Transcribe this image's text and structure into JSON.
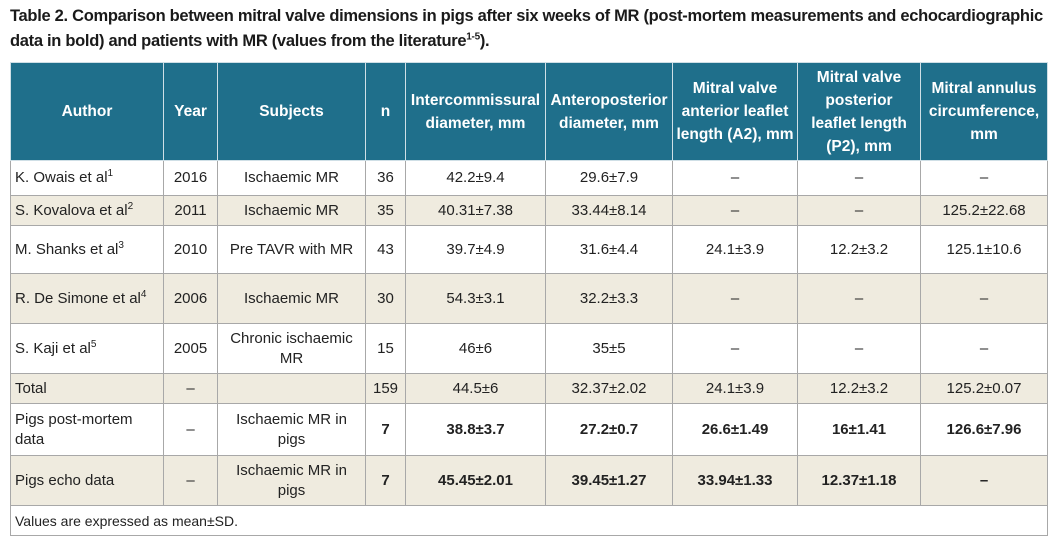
{
  "title": {
    "text": "Table 2. Comparison between mitral valve dimensions in pigs after six weeks of MR (post-mortem measurements and echocardiographic data in bold) and patients with MR (values from the literature",
    "sup": "1-5",
    "after": ")."
  },
  "table": {
    "header": [
      "Author",
      "Year",
      "Subjects",
      "n",
      "Intercommissural diameter, mm",
      "Anteroposterior diameter, mm",
      "Mitral valve anterior leaflet length (A2), mm",
      "Mitral valve posterior leaflet length (P2), mm",
      "Mitral annulus circumference, mm"
    ],
    "rows": [
      {
        "cells": [
          {
            "text": "K. Owais et al",
            "sup": "1"
          },
          "2016",
          "Ischaemic MR",
          "36",
          "42.2±9.4",
          "29.6±7.9",
          "–",
          "–",
          "–"
        ]
      },
      {
        "cells": [
          {
            "text": "S. Kovalova et al",
            "sup": "2"
          },
          "2011",
          "Ischaemic MR",
          "35",
          "40.31±7.38",
          "33.44±8.14",
          "–",
          "–",
          "125.2±22.68"
        ]
      },
      {
        "cells": [
          {
            "text": "M. Shanks et al",
            "sup": "3"
          },
          "2010",
          "Pre TAVR with MR",
          "43",
          "39.7±4.9",
          "31.6±4.4",
          "24.1±3.9",
          "12.2±3.2",
          "125.1±10.6"
        ]
      },
      {
        "cells": [
          {
            "text": "R. De Simone et al",
            "sup": "4"
          },
          "2006",
          "Ischaemic MR",
          "30",
          "54.3±3.1",
          "32.2±3.3",
          "–",
          "–",
          "–"
        ]
      },
      {
        "cells": [
          {
            "text": "S. Kaji et al",
            "sup": "5"
          },
          "2005",
          "Chronic ischaemic MR",
          "15",
          "46±6",
          "35±5",
          "–",
          "–",
          "–"
        ]
      },
      {
        "cells": [
          {
            "text": "Total"
          },
          "–",
          "",
          "159",
          "44.5±6",
          "32.37±2.02",
          "24.1±3.9",
          "12.2±3.2",
          "125.2±0.07"
        ]
      },
      {
        "cells": [
          {
            "text": "Pigs post-mortem data"
          },
          "–",
          "Ischaemic MR in pigs",
          "7",
          "38.8±3.7",
          "27.2±0.7",
          "26.6±1.49",
          "16±1.41",
          "126.6±7.96"
        ],
        "bold": true
      },
      {
        "cells": [
          {
            "text": "Pigs echo data"
          },
          "–",
          "Ischaemic MR in pigs",
          "7",
          "45.45±2.01",
          "39.45±1.27",
          "33.94±1.33",
          "12.37±1.18",
          "–"
        ],
        "bold": true
      }
    ],
    "footer": "Values are expressed as mean±SD."
  }
}
